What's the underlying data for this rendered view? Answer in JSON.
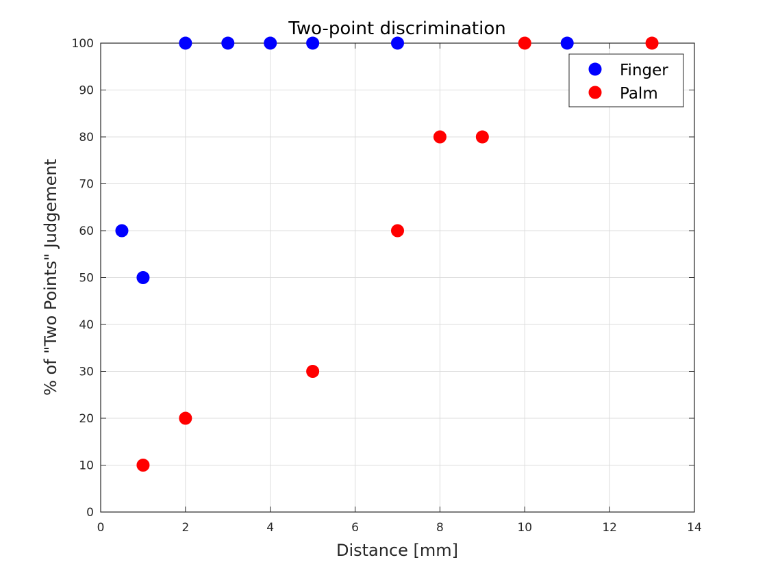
{
  "chart_data": {
    "type": "scatter",
    "title": "Two-point discrimination",
    "xlabel": "Distance [mm]",
    "ylabel": "% of \"Two Points\" Judgement",
    "xlim": [
      0,
      14
    ],
    "ylim": [
      0,
      100
    ],
    "xticks": [
      0,
      2,
      4,
      6,
      8,
      10,
      12,
      14
    ],
    "yticks": [
      0,
      10,
      20,
      30,
      40,
      50,
      60,
      70,
      80,
      90,
      100
    ],
    "grid": true,
    "legend": {
      "placement": "top-right"
    },
    "series": [
      {
        "name": "Finger",
        "color": "#0000ff",
        "points": [
          {
            "x": 0.5,
            "y": 60
          },
          {
            "x": 1,
            "y": 50
          },
          {
            "x": 2,
            "y": 100
          },
          {
            "x": 3,
            "y": 100
          },
          {
            "x": 4,
            "y": 100
          },
          {
            "x": 5,
            "y": 100
          },
          {
            "x": 7,
            "y": 100
          },
          {
            "x": 11,
            "y": 100
          }
        ]
      },
      {
        "name": "Palm",
        "color": "#ff0000",
        "points": [
          {
            "x": 1,
            "y": 10
          },
          {
            "x": 2,
            "y": 20
          },
          {
            "x": 5,
            "y": 30
          },
          {
            "x": 7,
            "y": 60
          },
          {
            "x": 8,
            "y": 80
          },
          {
            "x": 9,
            "y": 80
          },
          {
            "x": 10,
            "y": 100
          },
          {
            "x": 13,
            "y": 100
          }
        ]
      }
    ]
  }
}
